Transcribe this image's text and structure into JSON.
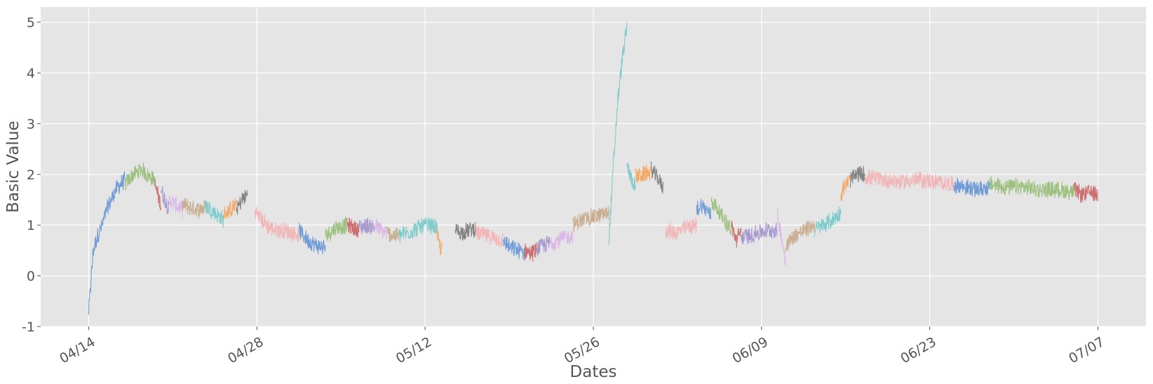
{
  "chart_data": {
    "type": "line",
    "title": "",
    "xlabel": "Dates",
    "ylabel": "Basic Value",
    "x_ticks": [
      "04/14",
      "04/28",
      "05/12",
      "05/26",
      "06/09",
      "06/23",
      "07/07"
    ],
    "y_ticks": [
      "-1",
      "0",
      "1",
      "2",
      "3",
      "4",
      "5"
    ],
    "x_range": [
      "2024-04-10",
      "2024-07-11"
    ],
    "ylim": [
      -1.0,
      5.3
    ],
    "grid": true,
    "legend": "none",
    "background": "#e5e5e5",
    "grid_color": "#ffffff",
    "segments": [
      {
        "start": "2024-04-14",
        "end": "2024-04-17",
        "color": "#6f9bd6",
        "values": [
          -0.7,
          0.5,
          0.8,
          1.0,
          1.3,
          1.5,
          1.7,
          1.8,
          1.9
        ]
      },
      {
        "start": "2024-04-17",
        "end": "2024-04-19.5",
        "color": "#9cc17f",
        "values": [
          1.8,
          1.9,
          2.0,
          2.05,
          2.1,
          2.0,
          1.95,
          1.9
        ]
      },
      {
        "start": "2024-04-19.5",
        "end": "2024-04-20",
        "color": "#cd6e6f",
        "values": [
          1.8,
          1.6,
          1.4
        ]
      },
      {
        "start": "2024-04-20",
        "end": "2024-04-20.7",
        "color": "#a898d0",
        "values": [
          1.7,
          1.5,
          1.3
        ]
      },
      {
        "start": "2024-04-20.7",
        "end": "2024-04-21.8",
        "color": "#dcb8e8",
        "values": [
          1.5,
          1.4,
          1.3
        ]
      },
      {
        "start": "2024-04-21.8",
        "end": "2024-04-23.7",
        "color": "#c9ad90",
        "values": [
          1.4,
          1.35,
          1.3,
          1.35
        ]
      },
      {
        "start": "2024-04-23.7",
        "end": "2024-04-25.2",
        "color": "#7dcccb",
        "values": [
          1.4,
          1.3,
          1.2,
          1.1
        ]
      },
      {
        "start": "2024-04-25.2",
        "end": "2024-04-26.3",
        "color": "#f4a865",
        "values": [
          1.2,
          1.3,
          1.4
        ]
      },
      {
        "start": "2024-04-26.3",
        "end": "2024-04-27.2",
        "color": "#838383",
        "values": [
          1.3,
          1.5,
          1.6
        ]
      },
      {
        "start": "2024-04-27.8",
        "end": "2024-05-01.5",
        "color": "#f1b7b8",
        "values": [
          1.3,
          1.1,
          0.95,
          0.9,
          0.9,
          0.85,
          0.8
        ]
      },
      {
        "start": "2024-05-01.5",
        "end": "2024-05-03.7",
        "color": "#6f9bd6",
        "values": [
          0.9,
          0.7,
          0.6,
          0.55
        ]
      },
      {
        "start": "2024-05-03.7",
        "end": "2024-05-05.5",
        "color": "#9cc17f",
        "values": [
          0.8,
          0.95,
          1.0
        ]
      },
      {
        "start": "2024-05-05.5",
        "end": "2024-05-06.5",
        "color": "#cd6e6f",
        "values": [
          1.0,
          0.95,
          0.9
        ]
      },
      {
        "start": "2024-05-06.5",
        "end": "2024-05-07.8",
        "color": "#a898d0",
        "values": [
          0.95,
          1.0,
          0.95
        ]
      },
      {
        "start": "2024-05-07.8",
        "end": "2024-05-08.8",
        "color": "#dcb8e8",
        "values": [
          1.0,
          0.9,
          0.85
        ]
      },
      {
        "start": "2024-05-08.8",
        "end": "2024-05-09.8",
        "color": "#c9ad90",
        "values": [
          0.85,
          0.8,
          0.8
        ]
      },
      {
        "start": "2024-05-09.8",
        "end": "2024-05-13",
        "color": "#7dcccb",
        "values": [
          0.8,
          0.85,
          0.95,
          1.0,
          0.95
        ]
      },
      {
        "start": "2024-05-13",
        "end": "2024-05-13.4",
        "color": "#f4a865",
        "values": [
          0.8,
          0.6,
          0.5
        ]
      },
      {
        "start": "2024-05-14.5",
        "end": "2024-05-16.2",
        "color": "#838383",
        "values": [
          0.9,
          0.85,
          0.9,
          0.95
        ]
      },
      {
        "start": "2024-05-16.2",
        "end": "2024-05-18.5",
        "color": "#f1b7b8",
        "values": [
          0.85,
          0.8,
          0.75,
          0.7
        ]
      },
      {
        "start": "2024-05-18.5",
        "end": "2024-05-20.3",
        "color": "#6f9bd6",
        "values": [
          0.7,
          0.55,
          0.5,
          0.45
        ]
      },
      {
        "start": "2024-05-20.3",
        "end": "2024-05-21.3",
        "color": "#cd6e6f",
        "values": [
          0.5,
          0.45,
          0.5
        ]
      },
      {
        "start": "2024-05-21.3",
        "end": "2024-05-22.4",
        "color": "#a898d0",
        "values": [
          0.55,
          0.6,
          0.65
        ]
      },
      {
        "start": "2024-05-22.4",
        "end": "2024-05-24.3",
        "color": "#dcb8e8",
        "values": [
          0.65,
          0.7,
          0.75,
          0.8
        ]
      },
      {
        "start": "2024-05-24.3",
        "end": "2024-05-27.3",
        "color": "#c9ad90",
        "values": [
          1.0,
          1.1,
          1.15,
          1.2,
          1.25
        ]
      },
      {
        "start": "2024-05-27.3",
        "end": "2024-05-28.8",
        "color": "#7dcccb",
        "values": [
          0.7,
          2.2,
          3.5,
          4.3,
          4.9
        ]
      },
      {
        "start": "2024-05-28.8",
        "end": "2024-05-29.5",
        "color": "#7dcccb",
        "values": [
          2.2,
          1.9,
          1.8
        ]
      },
      {
        "start": "2024-05-29.5",
        "end": "2024-05-30.8",
        "color": "#f4a865",
        "values": [
          1.95,
          2.0,
          2.05
        ]
      },
      {
        "start": "2024-05-30.8",
        "end": "2024-05-31.8",
        "color": "#838383",
        "values": [
          2.1,
          1.95,
          1.75
        ]
      },
      {
        "start": "2024-06-01",
        "end": "2024-06-03.6",
        "color": "#f1b7b8",
        "values": [
          0.9,
          0.85,
          0.95,
          1.0
        ]
      },
      {
        "start": "2024-06-03.6",
        "end": "2024-06-04.8",
        "color": "#6f9bd6",
        "values": [
          1.3,
          1.4,
          1.3,
          1.2
        ]
      },
      {
        "start": "2024-06-04.8",
        "end": "2024-06-06.5",
        "color": "#9cc17f",
        "values": [
          1.5,
          1.3,
          1.1,
          0.9
        ]
      },
      {
        "start": "2024-06-06.5",
        "end": "2024-06-07.3",
        "color": "#cd6e6f",
        "values": [
          1.0,
          0.7,
          0.9
        ]
      },
      {
        "start": "2024-06-07.3",
        "end": "2024-06-10.3",
        "color": "#a898d0",
        "values": [
          0.75,
          0.8,
          0.85,
          0.9,
          0.9
        ]
      },
      {
        "start": "2024-06-10.3",
        "end": "2024-06-11",
        "color": "#dcb8e8",
        "values": [
          1.2,
          0.8,
          0.3
        ]
      },
      {
        "start": "2024-06-11",
        "end": "2024-06-13.4",
        "color": "#c9ad90",
        "values": [
          0.6,
          0.8,
          0.9,
          1.0
        ]
      },
      {
        "start": "2024-06-13.4",
        "end": "2024-06-15.6",
        "color": "#7dcccb",
        "values": [
          0.9,
          1.0,
          1.1,
          1.25
        ]
      },
      {
        "start": "2024-06-15.6",
        "end": "2024-06-16.4",
        "color": "#f4a865",
        "values": [
          1.6,
          1.8,
          1.9
        ]
      },
      {
        "start": "2024-06-16.4",
        "end": "2024-06-17.6",
        "color": "#838383",
        "values": [
          1.9,
          2.0,
          2.0
        ]
      },
      {
        "start": "2024-06-17.6",
        "end": "2024-06-25",
        "color": "#f1b7b8",
        "values": [
          1.95,
          1.9,
          1.85,
          1.9,
          1.85,
          1.8
        ]
      },
      {
        "start": "2024-06-25",
        "end": "2024-06-28",
        "color": "#6f9bd6",
        "values": [
          1.8,
          1.75,
          1.7,
          1.75
        ]
      },
      {
        "start": "2024-06-28",
        "end": "2024-07-05",
        "color": "#9cc17f",
        "values": [
          1.8,
          1.75,
          1.75,
          1.7,
          1.7,
          1.65
        ]
      },
      {
        "start": "2024-07-05",
        "end": "2024-07-07",
        "color": "#cd6e6f",
        "values": [
          1.7,
          1.6,
          1.65,
          1.6
        ]
      }
    ]
  }
}
